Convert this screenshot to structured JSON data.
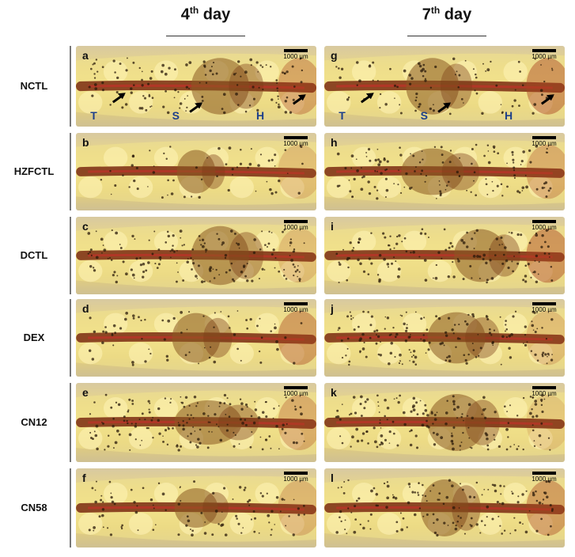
{
  "columns": {
    "left": {
      "text": "4",
      "sup": "th",
      "rest": " day"
    },
    "right": {
      "text": "7",
      "sup": "th",
      "rest": " day"
    }
  },
  "rows": [
    "NCTL",
    "HZFCTL",
    "DCTL",
    "DEX",
    "CN12",
    "CN58"
  ],
  "panels": {
    "left": [
      "a",
      "b",
      "c",
      "d",
      "e",
      "f"
    ],
    "right": [
      "g",
      "h",
      "i",
      "j",
      "k",
      "l"
    ]
  },
  "scale_label": "1000 µm",
  "regions": {
    "tail": "T",
    "swim_bladder": "S",
    "head": "H"
  }
}
